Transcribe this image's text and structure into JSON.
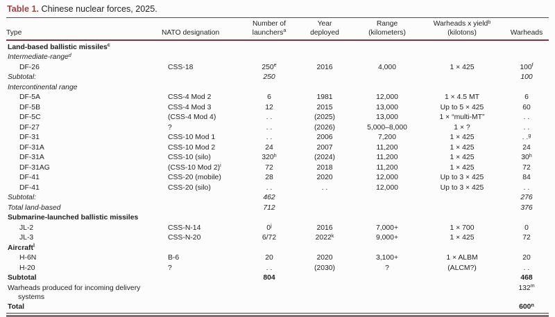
{
  "title": {
    "label": "Table 1.",
    "text": " Chinese nuclear forces, 2025."
  },
  "colors": {
    "accent_label": "#a6403f",
    "rule_maroon": "#7a3642",
    "bottom_rule": "#8a6a70",
    "text": "#1e1e1e"
  },
  "columns": [
    {
      "id": "type",
      "lines": [
        "Type"
      ],
      "align": "left"
    },
    {
      "id": "nato",
      "lines": [
        "NATO designation"
      ],
      "align": "left"
    },
    {
      "id": "launchers",
      "lines": [
        "Number of",
        "launchers^a"
      ],
      "align": "center"
    },
    {
      "id": "year",
      "lines": [
        "Year",
        "deployed"
      ],
      "align": "center"
    },
    {
      "id": "range",
      "lines": [
        "Range",
        "(kilometers)"
      ],
      "align": "center"
    },
    {
      "id": "yield",
      "lines": [
        "Warheads x yield^b",
        "(kilotons)"
      ],
      "align": "center"
    },
    {
      "id": "warheads",
      "lines": [
        "Warheads"
      ],
      "align": "center"
    }
  ],
  "rows": [
    {
      "type": "Land-based ballistic missiles^c",
      "style": "bold",
      "indent": 0,
      "cells": {}
    },
    {
      "type": "Intermediate-range^d",
      "style": "italic",
      "indent": 0,
      "cells": {}
    },
    {
      "type": "DF-26",
      "style": "normal",
      "indent": 1,
      "cells": {
        "nato": "CSS-18",
        "launchers": "250^e",
        "year": "2016",
        "range": "4,000",
        "yield": "1 × 425",
        "warheads": "100^f"
      }
    },
    {
      "type": "Subtotal:",
      "style": "italic",
      "indent": 0,
      "cells": {
        "launchers": "250",
        "warheads": "100"
      }
    },
    {
      "type": "Intercontinental range",
      "style": "italic",
      "indent": 0,
      "cells": {}
    },
    {
      "type": "DF-5A",
      "style": "normal",
      "indent": 1,
      "cells": {
        "nato": "CSS-4 Mod 2",
        "launchers": "6",
        "year": "1981",
        "range": "12,000",
        "yield": "1 × 4.5 MT",
        "warheads": "6"
      }
    },
    {
      "type": "DF-5B",
      "style": "normal",
      "indent": 1,
      "cells": {
        "nato": "CSS-4 Mod 3",
        "launchers": "12",
        "year": "2015",
        "range": "13,000",
        "yield": "Up to 5 × 425",
        "warheads": "60"
      }
    },
    {
      "type": "DF-5C",
      "style": "normal",
      "indent": 1,
      "cells": {
        "nato": "(CSS-4 Mod 4)",
        "launchers": ". .",
        "year": "(2025)",
        "range": "13,000",
        "yield": "1 × “multi-MT”",
        "warheads": ". ."
      }
    },
    {
      "type": "DF-27",
      "style": "normal",
      "indent": 1,
      "cells": {
        "nato": "?",
        "launchers": ". .",
        "year": "(2026)",
        "range": "5,000–8,000",
        "yield": "1 × ?",
        "warheads": ". ."
      }
    },
    {
      "type": "DF-31",
      "style": "normal",
      "indent": 1,
      "cells": {
        "nato": "CSS-10 Mod 1",
        "launchers": ". .",
        "year": "2006",
        "range": "7,200",
        "yield": "1 × 425",
        "warheads": ". .^g"
      }
    },
    {
      "type": "DF-31A",
      "style": "normal",
      "indent": 1,
      "cells": {
        "nato": "CSS-10 Mod 2",
        "launchers": "24",
        "year": "2007",
        "range": "11,200",
        "yield": "1 × 425",
        "warheads": "24"
      }
    },
    {
      "type": "DF-31A",
      "style": "normal",
      "indent": 1,
      "cells": {
        "nato": "CSS-10 (silo)",
        "launchers": "320^h",
        "year": "(2024)",
        "range": "11,200",
        "yield": "1 × 425",
        "warheads": "30^h"
      }
    },
    {
      "type": "DF-31AG",
      "style": "normal",
      "indent": 1,
      "cells": {
        "nato": "(CSS-10 Mod 2)^i",
        "launchers": "72",
        "year": "2018",
        "range": "11,200",
        "yield": "1 × 425",
        "warheads": "72"
      }
    },
    {
      "type": "DF-41",
      "style": "normal",
      "indent": 1,
      "cells": {
        "nato": "CSS-20 (mobile)",
        "launchers": "28",
        "year": "2020",
        "range": "12,000",
        "yield": "Up to 3 × 425",
        "warheads": "84"
      }
    },
    {
      "type": "DF-41",
      "style": "normal",
      "indent": 1,
      "cells": {
        "nato": "CSS-20 (silo)",
        "launchers": ". .",
        "year": ". .",
        "range": "12,000",
        "yield": "Up to 3 × 425",
        "warheads": ". ."
      }
    },
    {
      "type": "Subtotal:",
      "style": "italic",
      "indent": 0,
      "cells": {
        "launchers": "462",
        "warheads": "276"
      }
    },
    {
      "type": "Total land-based",
      "style": "italic",
      "indent": 0,
      "cells": {
        "launchers": "712",
        "warheads": "376"
      }
    },
    {
      "type": "Submarine-launched ballistic missiles",
      "style": "bold",
      "indent": 0,
      "cells": {}
    },
    {
      "type": "JL-2",
      "style": "normal",
      "indent": 1,
      "cells": {
        "nato": "CSS-N-14",
        "launchers": "0^j",
        "year": "2016",
        "range": "7,000+",
        "yield": "1 × 700",
        "warheads": "0"
      }
    },
    {
      "type": "JL-3",
      "style": "normal",
      "indent": 1,
      "cells": {
        "nato": "CSS-N-20",
        "launchers": "6/72",
        "year": "2022^k",
        "range": "9,000+",
        "yield": "1 × 425",
        "warheads": "72"
      }
    },
    {
      "type": "Aircraft^l",
      "style": "bold",
      "indent": 0,
      "cells": {}
    },
    {
      "type": "H-6N",
      "style": "normal",
      "indent": 1,
      "cells": {
        "nato": "B-6",
        "launchers": "20",
        "year": "2020",
        "range": "3,100+",
        "yield": "1 × ALBM",
        "warheads": "20"
      }
    },
    {
      "type": "H-20",
      "style": "normal",
      "indent": 1,
      "cells": {
        "nato": "?",
        "launchers": ". .",
        "year": "(2030)",
        "range": "?",
        "yield": "(ALCM?)",
        "warheads": ". ."
      }
    },
    {
      "type": "Subtotal",
      "style": "bold",
      "indent": 0,
      "cells": {
        "launchers": "804",
        "warheads": "468"
      }
    },
    {
      "type": "Warheads produced for incoming delivery\nsystems",
      "style": "normal",
      "indent": 0,
      "wrap": true,
      "cells": {
        "warheads": "132^m"
      }
    },
    {
      "type": "Total",
      "style": "bold",
      "indent": 0,
      "cells": {
        "warheads": "600^n"
      }
    }
  ]
}
